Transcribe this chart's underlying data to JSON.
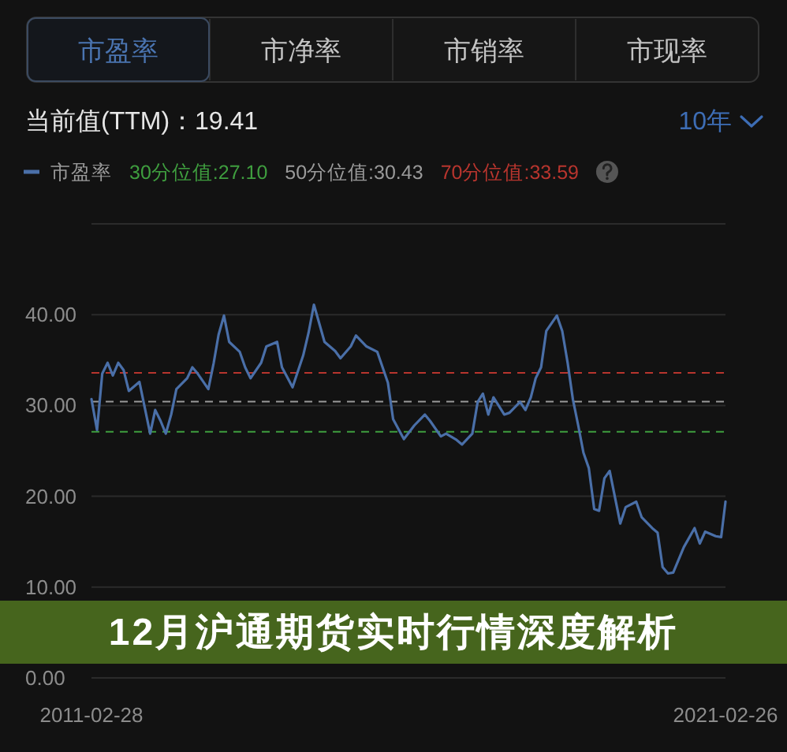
{
  "chart_data": {
    "type": "line",
    "title": "12月沪通期货实时行情深度解析",
    "annotations": [
      "市盈率",
      "市净率",
      "市销率",
      "市现率",
      "当前值(TTM)：19.41",
      "10年"
    ],
    "x": [
      "2011-02-28",
      "2011-04",
      "2011-05",
      "2011-06",
      "2011-07",
      "2011-08",
      "2011-09",
      "2011-10",
      "2011-12",
      "2012-02",
      "2012-03",
      "2012-04",
      "2012-05",
      "2012-06",
      "2012-07",
      "2012-09",
      "2012-10",
      "2012-11",
      "2013-01",
      "2013-02",
      "2013-03",
      "2013-04",
      "2013-05",
      "2013-07",
      "2013-08",
      "2013-09",
      "2013-11",
      "2013-12",
      "2014-02",
      "2014-03",
      "2014-05",
      "2014-07",
      "2014-08",
      "2014-09",
      "2014-11",
      "2015-01",
      "2015-02",
      "2015-04",
      "2015-05",
      "2015-07",
      "2015-09",
      "2015-11",
      "2015-12",
      "2016-02",
      "2016-04",
      "2016-06",
      "2016-07",
      "2016-09",
      "2016-10",
      "2016-12",
      "2017-01",
      "2017-03",
      "2017-04",
      "2017-05",
      "2017-06",
      "2017-07",
      "2017-09",
      "2017-10",
      "2017-12",
      "2018-01",
      "2018-02",
      "2018-03",
      "2018-04",
      "2018-05",
      "2018-07",
      "2018-08",
      "2018-09",
      "2018-10",
      "2018-11",
      "2018-12",
      "2019-01",
      "2019-02",
      "2019-03",
      "2019-04",
      "2019-05",
      "2019-07",
      "2019-08",
      "2019-10",
      "2019-11",
      "2020-01",
      "2020-02",
      "2020-03",
      "2020-04",
      "2020-05",
      "2020-07",
      "2020-09",
      "2020-10",
      "2020-11",
      "2021-01",
      "2021-02",
      "2021-02-26"
    ],
    "series": [
      {
        "name": "市盈率",
        "color": "#4a6fa8",
        "values": [
          30.7,
          27.3,
          33.5,
          34.7,
          33.3,
          34.7,
          33.9,
          31.6,
          32.6,
          26.9,
          29.5,
          28.3,
          26.9,
          29.0,
          31.8,
          33.0,
          34.2,
          33.5,
          31.8,
          34.7,
          37.8,
          39.9,
          37.0,
          35.9,
          34.2,
          33.0,
          34.7,
          36.5,
          37.0,
          34.2,
          32.0,
          35.5,
          38.0,
          41.1,
          37.0,
          36.0,
          35.2,
          36.5,
          37.7,
          36.5,
          35.9,
          32.5,
          28.5,
          26.3,
          27.8,
          29.0,
          28.3,
          26.6,
          26.9,
          26.2,
          25.7,
          26.9,
          30.4,
          31.3,
          29.0,
          30.9,
          29.0,
          29.2,
          30.4,
          29.5,
          30.9,
          33.0,
          34.2,
          38.2,
          39.9,
          38.2,
          34.7,
          30.7,
          27.8,
          24.8,
          23.1,
          18.6,
          18.4,
          22.0,
          22.8,
          17.0,
          18.8,
          19.4,
          17.7,
          16.5,
          16.0,
          12.2,
          11.5,
          11.6,
          14.4,
          16.5,
          14.8,
          16.1,
          15.6,
          15.5,
          19.41
        ]
      }
    ],
    "xlim": [
      "2011-02-28",
      "2021-02-26"
    ],
    "xticks": [
      {
        "value": "2011-02-28",
        "label": "2011-02-28"
      },
      {
        "value": "2021-02-26",
        "label": "2021-02-26"
      }
    ],
    "ylim": [
      0,
      50
    ],
    "yticks": [
      {
        "value": 0,
        "label": "0.00"
      },
      {
        "value": 10,
        "label": "10.00"
      },
      {
        "value": 20,
        "label": "20.00"
      },
      {
        "value": 30,
        "label": "30.00"
      },
      {
        "value": 40,
        "label": "40.00"
      },
      {
        "value": 50,
        "label": null
      }
    ],
    "grid": "y",
    "legend": "top left",
    "ref_lines": [
      {
        "axis": "y",
        "value": 27.1,
        "label": "30分位值:27.10",
        "color": "#3f9e3f",
        "line_style": "dashed"
      },
      {
        "axis": "y",
        "value": 30.43,
        "label": "50分位值:30.43",
        "color": "#9a9a9a",
        "line_style": "dashed"
      },
      {
        "axis": "y",
        "value": 33.59,
        "label": "70分位值:33.59",
        "color": "#b8352e",
        "line_style": "dashed"
      }
    ]
  }
}
